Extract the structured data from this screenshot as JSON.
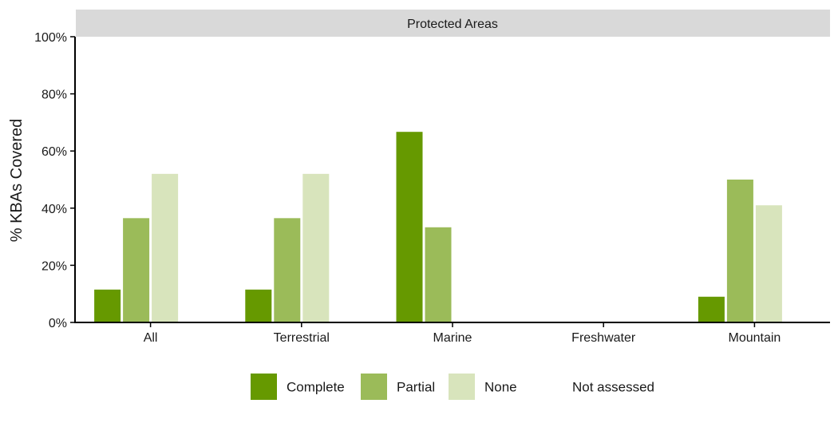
{
  "chart_data": {
    "type": "bar",
    "facet_title": "Protected Areas",
    "ylabel": "% KBAs Covered",
    "xlabel": "",
    "ylim": [
      0,
      100
    ],
    "y_ticks": [
      0,
      20,
      40,
      60,
      80,
      100
    ],
    "y_tick_labels": [
      "0%",
      "20%",
      "40%",
      "60%",
      "80%",
      "100%"
    ],
    "categories": [
      "All",
      "Terrestrial",
      "Marine",
      "Freshwater",
      "Mountain"
    ],
    "series": [
      {
        "name": "Complete",
        "color": "#669900",
        "values": [
          11.5,
          11.5,
          66.7,
          0,
          9.0
        ]
      },
      {
        "name": "Partial",
        "color": "#9bbb59",
        "values": [
          36.5,
          36.5,
          33.3,
          0,
          50.0
        ]
      },
      {
        "name": "None",
        "color": "#d8e4bc",
        "values": [
          52.0,
          52.0,
          0,
          0,
          41.0
        ]
      },
      {
        "name": "Not assessed",
        "color": "#ffffff",
        "values": [
          0,
          0,
          0,
          0,
          0
        ]
      }
    ],
    "grid": false,
    "legend_position": "bottom"
  }
}
